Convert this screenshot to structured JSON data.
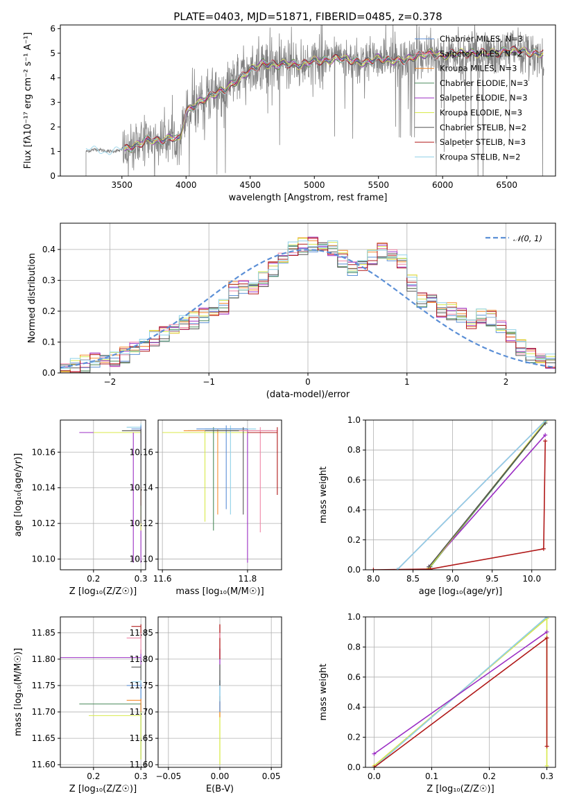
{
  "chart_data": [
    {
      "id": "spectrum",
      "type": "line",
      "title": "PLATE=0403, MJD=51871, FIBERID=0485, z=0.378",
      "xlabel": "wavelength [Angstrom, rest frame]",
      "ylabel": "Flux [fλ10⁻¹⁷ erg cm⁻² s⁻¹ A⁻¹]",
      "xlim": [
        3020,
        6880
      ],
      "ylim": [
        0,
        6.15
      ],
      "xticks": [
        3500,
        4000,
        4500,
        5000,
        5500,
        6000,
        6500
      ],
      "yticks": [
        0,
        1,
        2,
        3,
        4,
        5,
        6
      ],
      "grid": false,
      "legend_position": "top-right",
      "series": [
        {
          "name": "Chabrier MILES, N_SSP=3",
          "color": "#5b8fd6"
        },
        {
          "name": "Salpeter MILES, N_SSP=2",
          "color": "#ef86a6"
        },
        {
          "name": "Kroupa MILES, N_SSP=3",
          "color": "#f58b2c"
        },
        {
          "name": "Chabrier ELODIE, N_SSP=3",
          "color": "#4a8a5a"
        },
        {
          "name": "Salpeter ELODIE, N_SSP=3",
          "color": "#9b2ec4"
        },
        {
          "name": "Kroupa ELODIE, N_SSP=3",
          "color": "#d8ea4a"
        },
        {
          "name": "Chabrier STELIB, N_SSP=2",
          "color": "#555555"
        },
        {
          "name": "Salpeter STELIB, N_SSP=3",
          "color": "#b01818"
        },
        {
          "name": "Kroupa STELIB, N_SSP=2",
          "color": "#8fd0e8"
        }
      ],
      "data_color": "#808080",
      "continuum": {
        "x": [
          3220,
          3300,
          3400,
          3500,
          3600,
          3700,
          3800,
          3900,
          3950,
          4000,
          4100,
          4200,
          4300,
          4400,
          4500,
          4600,
          4700,
          4800,
          4900,
          5000,
          5100,
          5200,
          5300,
          5400,
          5500,
          5600,
          5700,
          5800,
          5900,
          6000,
          6100,
          6200,
          6300,
          6400,
          6500,
          6600,
          6700,
          6790
        ],
        "y": [
          1.0,
          1.1,
          1.0,
          1.05,
          1.2,
          1.5,
          1.4,
          1.6,
          1.5,
          2.6,
          3.0,
          3.3,
          3.5,
          3.9,
          4.3,
          4.6,
          4.5,
          4.6,
          4.5,
          4.7,
          4.7,
          4.8,
          4.7,
          4.6,
          4.8,
          4.7,
          4.7,
          4.9,
          5.0,
          4.9,
          5.0,
          5.0,
          5.0,
          5.0,
          5.1,
          5.1,
          5.0,
          5.0
        ]
      }
    },
    {
      "id": "residuals",
      "type": "line",
      "xlabel": "(data-model)/error",
      "ylabel": "Normed distribution",
      "xlim": [
        -2.5,
        2.5
      ],
      "ylim": [
        0,
        0.485
      ],
      "xticks": [
        -2,
        -1,
        0,
        1,
        2
      ],
      "yticks": [
        0.0,
        0.1,
        0.2,
        0.3,
        0.4
      ],
      "grid": true,
      "legend_position": "top-right",
      "legend_label": "𝒩(0, 1)",
      "gaussian_color": "#5b8fd6",
      "histogram": {
        "bin_edges_start": -2.5,
        "bin_width": 0.1,
        "values": [
          0.015,
          0.02,
          0.03,
          0.045,
          0.045,
          0.04,
          0.06,
          0.08,
          0.09,
          0.11,
          0.13,
          0.14,
          0.16,
          0.17,
          0.19,
          0.2,
          0.21,
          0.27,
          0.28,
          0.275,
          0.3,
          0.34,
          0.37,
          0.4,
          0.41,
          0.42,
          0.41,
          0.4,
          0.37,
          0.34,
          0.35,
          0.37,
          0.4,
          0.38,
          0.36,
          0.29,
          0.24,
          0.24,
          0.2,
          0.2,
          0.19,
          0.16,
          0.18,
          0.18,
          0.15,
          0.12,
          0.08,
          0.06,
          0.045,
          0.035
        ]
      }
    },
    {
      "id": "age-vs-Z",
      "type": "scatter",
      "xlabel": "Z [log₁₀(Z/Z☉)]",
      "ylabel": "age  [log₁₀(age/yr)]",
      "xlim": [
        0.13,
        0.31
      ],
      "ylim": [
        10.094,
        10.178
      ],
      "xticks": [
        0.2,
        0.3
      ],
      "yticks": [
        10.1,
        10.12,
        10.14,
        10.16
      ],
      "grid": true
    },
    {
      "id": "age-vs-mass",
      "type": "scatter",
      "xlabel": "mass [log₁₀(M/M☉)]",
      "xlim": [
        11.59,
        11.88
      ],
      "ylim": [
        10.094,
        10.178
      ],
      "xticks": [
        11.6,
        11.8
      ],
      "yticks": [
        10.1,
        10.12,
        10.14,
        10.16
      ],
      "grid": true
    },
    {
      "id": "massweight-vs-age",
      "type": "line",
      "xlabel": "age  [log₁₀(age/yr)]",
      "ylabel": "mass weight",
      "xlim": [
        7.9,
        10.3
      ],
      "ylim": [
        0,
        1.0
      ],
      "xticks": [
        8.0,
        8.5,
        9.0,
        9.5,
        10.0
      ],
      "yticks": [
        0.0,
        0.2,
        0.4,
        0.6,
        0.8,
        1.0
      ],
      "grid": true,
      "series": [
        {
          "name": "Chabrier MILES",
          "color": "#5b8fd6",
          "x": [
            8.3,
            10.18
          ],
          "y": [
            0.0,
            1.0
          ]
        },
        {
          "name": "Salpeter MILES",
          "color": "#ef86a6",
          "x": [
            8.3,
            10.18
          ],
          "y": [
            0.0,
            1.0
          ]
        },
        {
          "name": "Kroupa MILES",
          "color": "#f58b2c",
          "x": [
            8.7,
            10.17
          ],
          "y": [
            0.01,
            0.99
          ]
        },
        {
          "name": "Chabrier ELODIE",
          "color": "#4a8a5a",
          "x": [
            8.72,
            10.17
          ],
          "y": [
            0.02,
            0.98
          ]
        },
        {
          "name": "Salpeter ELODIE",
          "color": "#9b2ec4",
          "x": [
            8.7,
            10.17
          ],
          "y": [
            0.02,
            0.9
          ]
        },
        {
          "name": "Kroupa ELODIE",
          "color": "#d8ea4a",
          "x": [
            8.7,
            10.17
          ],
          "y": [
            0.01,
            0.99
          ]
        },
        {
          "name": "Chabrier STELIB",
          "color": "#555555",
          "x": [
            8.7,
            10.17
          ],
          "y": [
            0.02,
            0.98
          ]
        },
        {
          "name": "Salpeter STELIB",
          "color": "#b01818",
          "x": [
            8.0,
            8.72,
            10.15,
            10.17
          ],
          "y": [
            0.0,
            0.005,
            0.14,
            0.86
          ]
        },
        {
          "name": "Kroupa STELIB",
          "color": "#8fd0e8",
          "x": [
            8.3,
            10.18
          ],
          "y": [
            0.0,
            1.0
          ]
        }
      ]
    },
    {
      "id": "mass-vs-Z",
      "type": "scatter",
      "xlabel": "Z [log₁₀(Z/Z☉)]",
      "ylabel": "mass [log₁₀(M/M☉)]",
      "xlim": [
        0.13,
        0.31
      ],
      "ylim": [
        11.595,
        11.88
      ],
      "xticks": [
        0.2,
        0.3
      ],
      "yticks": [
        11.6,
        11.65,
        11.7,
        11.75,
        11.8,
        11.85
      ],
      "grid": true
    },
    {
      "id": "mass-vs-ebv",
      "type": "scatter",
      "xlabel": "E(B-V)",
      "xlim": [
        -0.06,
        0.06
      ],
      "ylim": [
        11.595,
        11.88
      ],
      "xticks": [
        -0.05,
        0.0,
        0.05
      ],
      "yticks": [
        11.6,
        11.65,
        11.7,
        11.75,
        11.8,
        11.85
      ],
      "grid": true
    },
    {
      "id": "massweight-vs-Z",
      "type": "line",
      "xlabel": "Z [log₁₀(Z/Z☉)]",
      "ylabel": "mass weight",
      "xlim": [
        -0.015,
        0.315
      ],
      "ylim": [
        0,
        1.0
      ],
      "xticks": [
        0.0,
        0.1,
        0.2,
        0.3
      ],
      "yticks": [
        0.0,
        0.2,
        0.4,
        0.6,
        0.8,
        1.0
      ],
      "grid": true,
      "series": [
        {
          "name": "Chabrier MILES",
          "color": "#5b8fd6",
          "x": [
            0.0,
            0.3
          ],
          "y": [
            0.0,
            1.0
          ]
        },
        {
          "name": "Kroupa MILES",
          "color": "#f58b2c",
          "x": [
            0.0,
            0.3
          ],
          "y": [
            0.01,
            0.99
          ]
        },
        {
          "name": "Kroupa ELODIE",
          "color": "#d8ea4a",
          "x": [
            0.0,
            0.3,
            0.3
          ],
          "y": [
            0.01,
            0.99,
            0.01
          ]
        },
        {
          "name": "Kroupa STELIB",
          "color": "#8fd0e8",
          "x": [
            0.0,
            0.3
          ],
          "y": [
            0.0,
            1.0
          ]
        },
        {
          "name": "Salpeter ELODIE",
          "color": "#9b2ec4",
          "x": [
            0.0,
            0.3
          ],
          "y": [
            0.09,
            0.9
          ]
        },
        {
          "name": "Salpeter STELIB",
          "color": "#b01818",
          "x": [
            0.0,
            0.3,
            0.3
          ],
          "y": [
            0.0,
            0.86,
            0.14
          ]
        }
      ]
    }
  ]
}
